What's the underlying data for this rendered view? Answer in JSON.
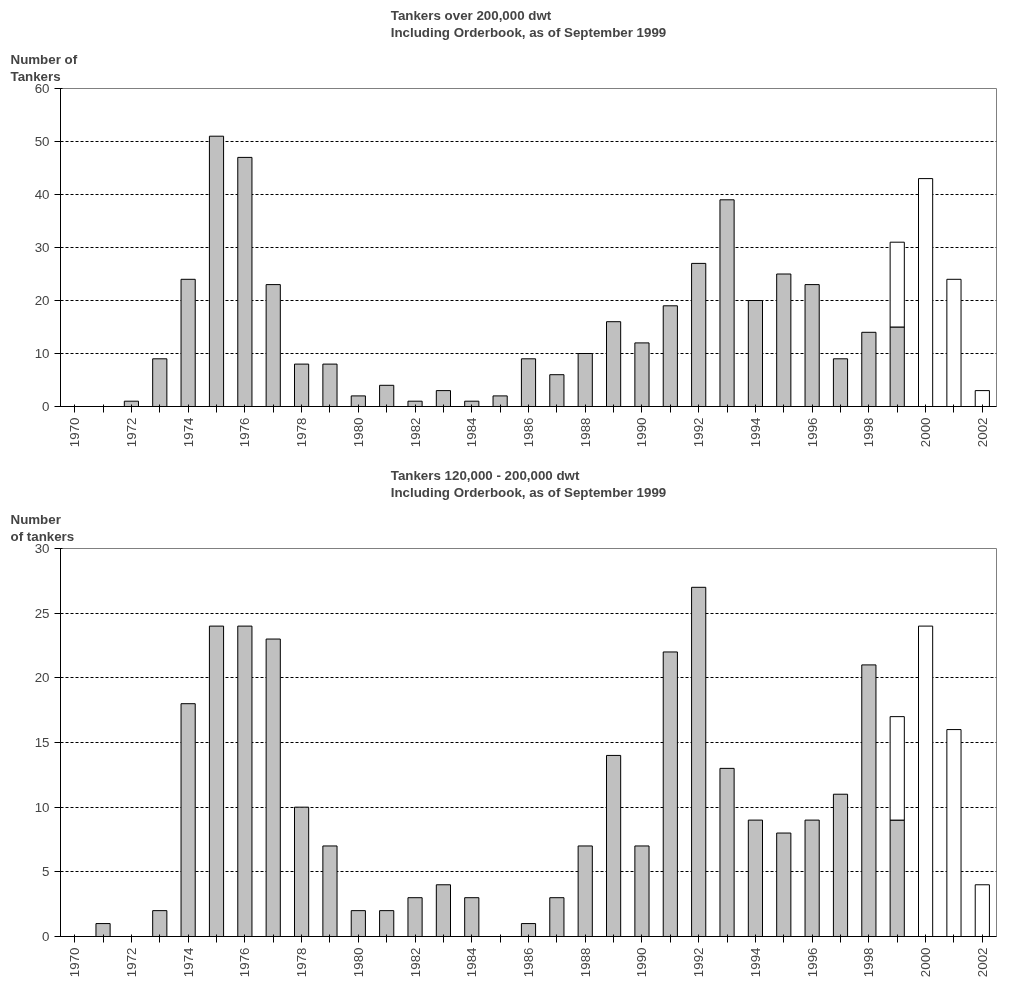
{
  "chart_data": [
    {
      "type": "bar",
      "title": "Tankers over 200,000 dwt\nIncluding Orderbook, as of September 1999",
      "ylabel": "Number of\nTankers",
      "stacked": true,
      "categories": [
        "1970",
        null,
        "1972",
        null,
        "1974",
        null,
        "1976",
        null,
        "1978",
        null,
        "1980",
        null,
        "1982",
        null,
        "1984",
        null,
        "1986",
        null,
        "1988",
        null,
        "1990",
        null,
        "1992",
        null,
        "1994",
        null,
        "1996",
        null,
        "1998",
        null,
        "2000",
        null,
        "2002"
      ],
      "series": [
        {
          "color": "#c0c0c0",
          "values": [
            null,
            null,
            1,
            9,
            24,
            51,
            47,
            23,
            8,
            8,
            2,
            4,
            1,
            3,
            1,
            2,
            9,
            6,
            10,
            16,
            12,
            19,
            27,
            39,
            20,
            25,
            23,
            9,
            14,
            15,
            null,
            null,
            null
          ]
        },
        {
          "color": "#ffffff",
          "values": [
            null,
            null,
            null,
            null,
            null,
            null,
            null,
            null,
            null,
            null,
            null,
            null,
            null,
            null,
            null,
            null,
            null,
            null,
            null,
            null,
            null,
            null,
            null,
            null,
            null,
            null,
            null,
            null,
            null,
            16,
            43,
            24,
            3
          ]
        }
      ],
      "ylim": [
        0,
        60
      ],
      "yticks": [
        0,
        10,
        20,
        30,
        40,
        50,
        60
      ],
      "grid": "y"
    },
    {
      "type": "bar",
      "title": "Tankers 120,000 - 200,000 dwt\nIncluding Orderbook, as of September 1999",
      "ylabel": "Number\nof tankers",
      "stacked": true,
      "categories": [
        "1970",
        null,
        "1972",
        null,
        "1974",
        null,
        "1976",
        null,
        "1978",
        null,
        "1980",
        null,
        "1982",
        null,
        "1984",
        null,
        "1986",
        null,
        "1988",
        null,
        "1990",
        null,
        "1992",
        null,
        "1994",
        null,
        "1996",
        null,
        "1998",
        null,
        "2000",
        null,
        "2002"
      ],
      "series": [
        {
          "color": "#c0c0c0",
          "values": [
            null,
            1,
            null,
            2,
            18,
            24,
            24,
            23,
            10,
            7,
            2,
            2,
            3,
            4,
            3,
            null,
            1,
            3,
            7,
            14,
            7,
            22,
            27,
            13,
            9,
            8,
            9,
            11,
            21,
            9,
            null,
            null,
            null
          ]
        },
        {
          "color": "#ffffff",
          "values": [
            null,
            null,
            null,
            null,
            null,
            null,
            null,
            null,
            null,
            null,
            null,
            null,
            null,
            null,
            null,
            null,
            null,
            null,
            null,
            null,
            null,
            null,
            null,
            null,
            null,
            null,
            null,
            null,
            null,
            8,
            24,
            16,
            4
          ]
        }
      ],
      "ylim": [
        0,
        30
      ],
      "yticks": [
        0,
        5,
        10,
        15,
        20,
        25,
        30
      ],
      "grid": "y"
    }
  ]
}
